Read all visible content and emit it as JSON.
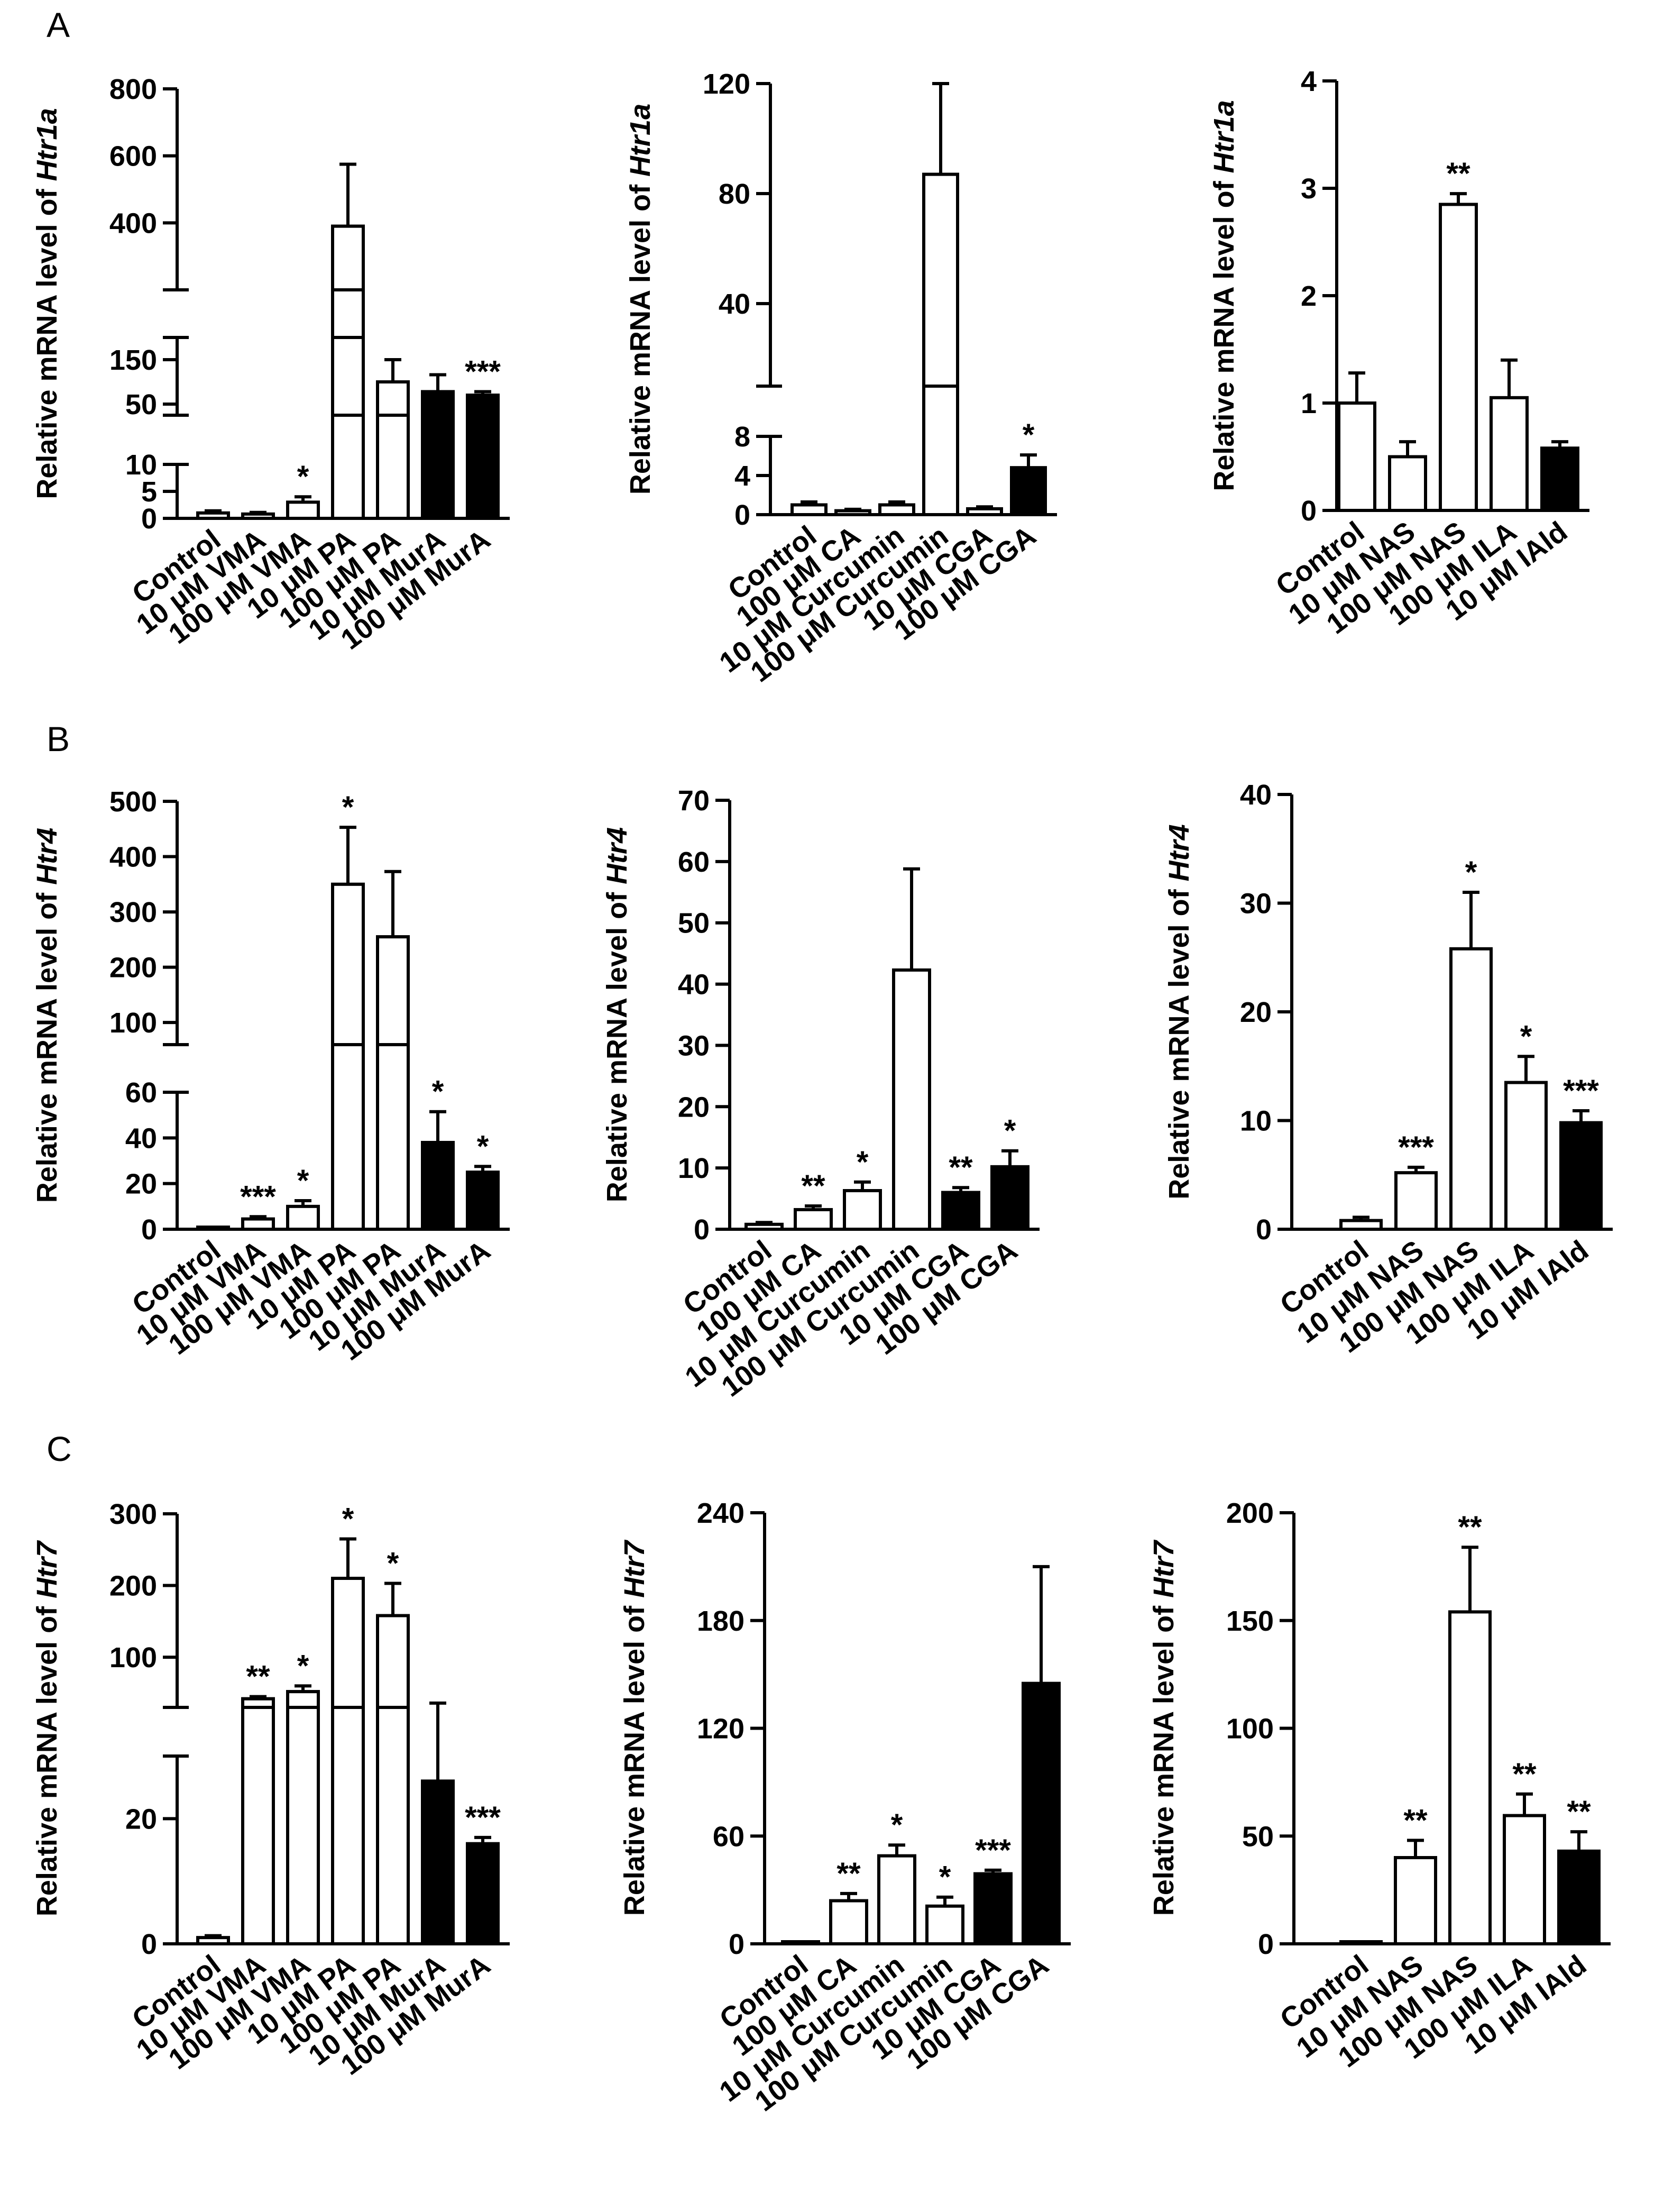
{
  "panel_letters": [
    "A",
    "B",
    "C"
  ],
  "chart_data": [
    {
      "id": "A1",
      "type": "bar",
      "panel": "A",
      "ylabel_prefix": "Relative mRNA level of ",
      "ylabel_gene": "Htr1a",
      "categories": [
        "Control",
        "10 μM VMA",
        "100 μM VMA",
        "10 μM PA",
        "100 μM PA",
        "10 μM MurA",
        "100 μM MurA"
      ],
      "fills": [
        "white",
        "white",
        "white",
        "white",
        "white",
        "black",
        "black"
      ],
      "values": [
        1,
        0.8,
        3,
        390,
        100,
        78,
        70
      ],
      "errors": [
        0.4,
        0.3,
        1,
        185,
        50,
        38,
        8
      ],
      "stars": [
        "",
        "",
        "*",
        "",
        "",
        "",
        "***"
      ],
      "segments": [
        {
          "range": [
            0,
            10
          ],
          "ticks": [
            0,
            5,
            10
          ]
        },
        {
          "range": [
            25,
            200
          ],
          "ticks": [
            50,
            150
          ]
        },
        {
          "range": [
            200,
            800
          ],
          "ticks": [
            400,
            600,
            800
          ]
        }
      ]
    },
    {
      "id": "A2",
      "type": "bar",
      "panel": "A",
      "ylabel_prefix": "Relative mRNA level of ",
      "ylabel_gene": "Htr1a",
      "categories": [
        "Control",
        "100 μM CA",
        "10 μM Curcumin",
        "100 μM Curcumin",
        "10 μM CGA",
        "100 μM CGA"
      ],
      "fills": [
        "white",
        "white",
        "white",
        "white",
        "white",
        "black"
      ],
      "values": [
        1,
        0.4,
        1,
        87,
        0.6,
        4.8
      ],
      "errors": [
        0.3,
        0.15,
        0.3,
        33,
        0.2,
        1.3
      ],
      "stars": [
        "",
        "",
        "",
        "",
        "",
        "*"
      ],
      "segments": [
        {
          "range": [
            0,
            8
          ],
          "ticks": [
            0,
            4,
            8
          ]
        },
        {
          "range": [
            10,
            120
          ],
          "ticks": [
            40,
            80,
            120
          ]
        }
      ]
    },
    {
      "id": "A3",
      "type": "bar",
      "panel": "A",
      "ylabel_prefix": "Relative mRNA level of ",
      "ylabel_gene": "Htr1a",
      "categories": [
        "Control",
        "10 μM NAS",
        "100 μM NAS",
        "100 μM ILA",
        "10 μM IAld"
      ],
      "fills": [
        "white",
        "white",
        "white",
        "white",
        "black"
      ],
      "values": [
        1,
        0.5,
        2.85,
        1.05,
        0.58
      ],
      "errors": [
        0.28,
        0.14,
        0.1,
        0.35,
        0.06
      ],
      "stars": [
        "",
        "",
        "**",
        "",
        ""
      ],
      "segments": [
        {
          "range": [
            0,
            4
          ],
          "ticks": [
            0,
            1,
            2,
            3,
            4
          ]
        }
      ]
    },
    {
      "id": "B1",
      "type": "bar",
      "panel": "B",
      "ylabel_prefix": "Relative mRNA level of ",
      "ylabel_gene": "Htr4",
      "categories": [
        "Control",
        "10 μM VMA",
        "100 μM VMA",
        "10 μM PA",
        "100 μM PA",
        "10 μM MurA",
        "100 μM MurA"
      ],
      "fills": [
        "white",
        "white",
        "white",
        "white",
        "white",
        "black",
        "black"
      ],
      "values": [
        0.5,
        4.5,
        10,
        350,
        255,
        38,
        25
      ],
      "errors": [
        0.3,
        1,
        2.5,
        103,
        118,
        13.5,
        2.5
      ],
      "stars": [
        "",
        "***",
        "*",
        "*",
        "",
        "*",
        "*"
      ],
      "segments": [
        {
          "range": [
            0,
            60
          ],
          "ticks": [
            0,
            20,
            40,
            60
          ]
        },
        {
          "range": [
            60,
            500
          ],
          "ticks": [
            100,
            200,
            300,
            400,
            500
          ]
        }
      ]
    },
    {
      "id": "B2",
      "type": "bar",
      "panel": "B",
      "ylabel_prefix": "Relative mRNA level of ",
      "ylabel_gene": "Htr4",
      "categories": [
        "Control",
        "100 μM CA",
        "10 μM Curcumin",
        "100 μM Curcumin",
        "10 μM CGA",
        "100 μM CGA"
      ],
      "fills": [
        "white",
        "white",
        "white",
        "white",
        "black",
        "black"
      ],
      "values": [
        0.8,
        3.2,
        6.3,
        42.3,
        6,
        10.2
      ],
      "errors": [
        0.3,
        0.6,
        1.4,
        16.5,
        0.8,
        2.6
      ],
      "stars": [
        "",
        "**",
        "*",
        "",
        "**",
        "*"
      ],
      "segments": [
        {
          "range": [
            0,
            70
          ],
          "ticks": [
            0,
            10,
            20,
            30,
            40,
            50,
            60,
            70
          ]
        }
      ]
    },
    {
      "id": "B3",
      "type": "bar",
      "panel": "B",
      "ylabel_prefix": "Relative mRNA level of ",
      "ylabel_gene": "Htr4",
      "categories": [
        "Control",
        "10 μM NAS",
        "100 μM NAS",
        "100 μM ILA",
        "10 μM IAld"
      ],
      "fills": [
        "white",
        "white",
        "white",
        "white",
        "black"
      ],
      "values": [
        0.8,
        5.2,
        25.8,
        13.5,
        9.8
      ],
      "errors": [
        0.3,
        0.5,
        5.2,
        2.4,
        1.1
      ],
      "stars": [
        "",
        "***",
        "*",
        "*",
        "***"
      ],
      "segments": [
        {
          "range": [
            0,
            40
          ],
          "ticks": [
            0,
            10,
            20,
            30,
            40
          ]
        }
      ]
    },
    {
      "id": "C1",
      "type": "bar",
      "panel": "C",
      "ylabel_prefix": "Relative mRNA level of ",
      "ylabel_gene": "Htr7",
      "categories": [
        "Control",
        "10 μM VMA",
        "100 μM VMA",
        "10 μM PA",
        "100 μM PA",
        "10 μM MurA",
        "100 μM MurA"
      ],
      "fills": [
        "white",
        "white",
        "white",
        "white",
        "white",
        "black",
        "black"
      ],
      "values": [
        1,
        42,
        52,
        210,
        158,
        26,
        16
      ],
      "errors": [
        0.3,
        3,
        8,
        55,
        45,
        10,
        1
      ],
      "stars": [
        "",
        "**",
        "*",
        "*",
        "*",
        "",
        "***"
      ],
      "segments": [
        {
          "range": [
            0,
            30
          ],
          "ticks": [
            0,
            20
          ]
        },
        {
          "range": [
            30,
            300
          ],
          "ticks": [
            100,
            200,
            300
          ]
        }
      ]
    },
    {
      "id": "C2",
      "type": "bar",
      "panel": "C",
      "ylabel_prefix": "Relative mRNA level of ",
      "ylabel_gene": "Htr7",
      "categories": [
        "Control",
        "100 μM CA",
        "10 μM Curcumin",
        "100 μM Curcumin",
        "10 μM CGA",
        "100 μM CGA"
      ],
      "fills": [
        "white",
        "white",
        "white",
        "white",
        "black",
        "black"
      ],
      "values": [
        0.5,
        24,
        49,
        21,
        39,
        145
      ],
      "errors": [
        0.2,
        4,
        6,
        5,
        2,
        65
      ],
      "stars": [
        "",
        "**",
        "*",
        "*",
        "***",
        ""
      ],
      "segments": [
        {
          "range": [
            0,
            240
          ],
          "ticks": [
            0,
            60,
            120,
            180,
            240
          ]
        }
      ]
    },
    {
      "id": "C3",
      "type": "bar",
      "panel": "C",
      "ylabel_prefix": "Relative mRNA level of ",
      "ylabel_gene": "Htr7",
      "categories": [
        "Control",
        "10 μM NAS",
        "100 μM NAS",
        "100 μM ILA",
        "10 μM IAld"
      ],
      "fills": [
        "white",
        "white",
        "white",
        "white",
        "black"
      ],
      "values": [
        0.5,
        40,
        154,
        59.5,
        43
      ],
      "errors": [
        0.2,
        8,
        30,
        10,
        9
      ],
      "stars": [
        "",
        "**",
        "**",
        "**",
        "**"
      ],
      "segments": [
        {
          "range": [
            0,
            200
          ],
          "ticks": [
            0,
            50,
            100,
            150,
            200
          ]
        }
      ]
    }
  ]
}
